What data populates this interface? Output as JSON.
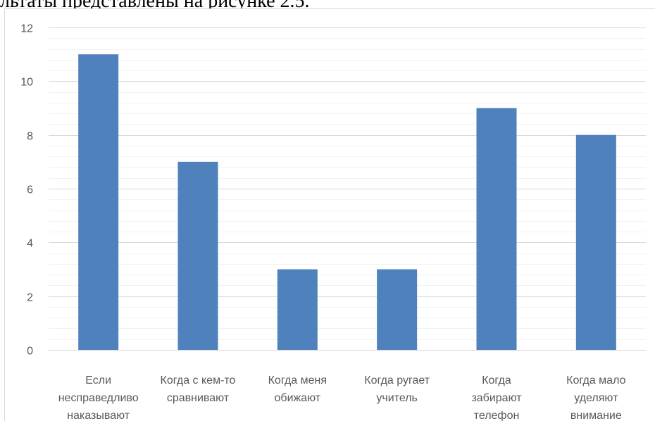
{
  "caption": "льтаты представлены на рисунке 2.5.",
  "chart_data": {
    "type": "bar",
    "categories": [
      [
        "Если",
        "несправедливо",
        "наказывают"
      ],
      [
        "Когда с кем-то",
        "сравнивают"
      ],
      [
        "Когда меня",
        "обижают"
      ],
      [
        "Когда ругает",
        "учитель"
      ],
      [
        "Когда",
        "забирают",
        "телефон"
      ],
      [
        "Когда мало",
        "уделяют",
        "внимание"
      ]
    ],
    "values": [
      11,
      7,
      3,
      3,
      9,
      8
    ],
    "ylim": [
      0,
      12
    ],
    "yticks": [
      0,
      2,
      4,
      6,
      8,
      10,
      12
    ],
    "grid": true,
    "legend": "none",
    "bar_color": "#4f81bd",
    "grid_color": "#d9d9d9",
    "minor_grid_color": "#f2f2f2"
  }
}
